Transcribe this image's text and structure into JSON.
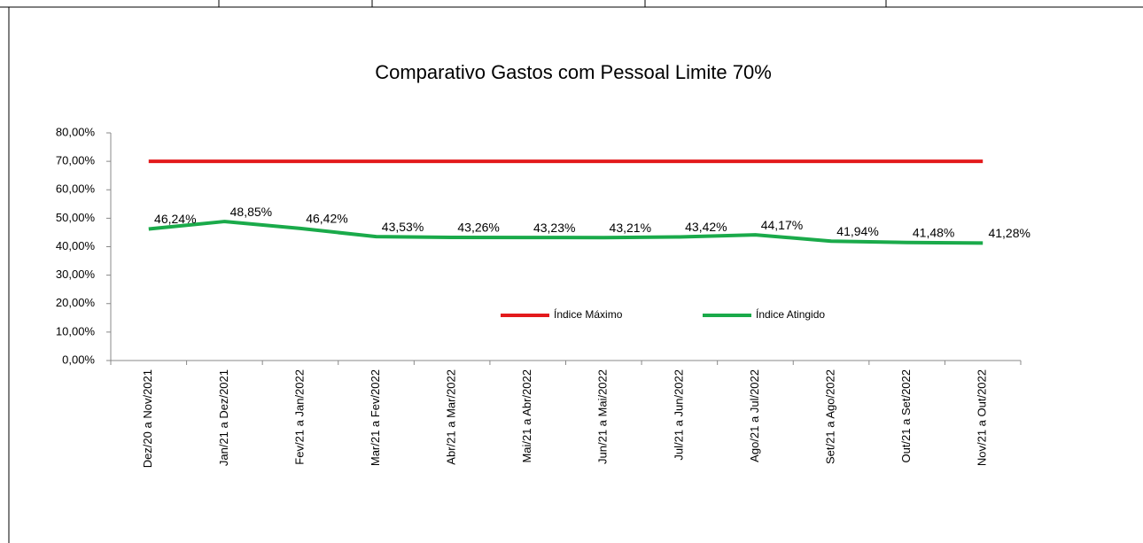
{
  "chart_data": {
    "type": "line",
    "title": "Comparativo Gastos com Pessoal Limite 70%",
    "categories": [
      "Dez/20 a Nov/2021",
      "Jan/21 a Dez/2021",
      "Fev/21 a Jan/2022",
      "Mar/21 a Fev/2022",
      "Abr/21 a Mar/2022",
      "Mai/21 a Abr/2022",
      "Jun/21 a Mai/2022",
      "Jul/21 a Jun/2022",
      "Ago/21 a Jul/2022",
      "Set/21 a Ago/2022",
      "Out/21 a Set/2022",
      "Nov/21 a Out/2022"
    ],
    "series": [
      {
        "name": "Índice Máximo",
        "color": "#e31a1c",
        "values": [
          70,
          70,
          70,
          70,
          70,
          70,
          70,
          70,
          70,
          70,
          70,
          70
        ]
      },
      {
        "name": "Índice Atingido",
        "color": "#1aaa4a",
        "values": [
          46.24,
          48.85,
          46.42,
          43.53,
          43.26,
          43.23,
          43.21,
          43.42,
          44.17,
          41.94,
          41.48,
          41.28
        ],
        "value_labels": [
          "46,24%",
          "48,85%",
          "46,42%",
          "43,53%",
          "43,26%",
          "43,23%",
          "43,21%",
          "43,42%",
          "44,17%",
          "41,94%",
          "41,48%",
          "41,28%"
        ]
      }
    ],
    "ylim": [
      0,
      80
    ],
    "yticks": [
      {
        "value": 0,
        "label": "0,00%"
      },
      {
        "value": 10,
        "label": "10,00%"
      },
      {
        "value": 20,
        "label": "20,00%"
      },
      {
        "value": 30,
        "label": "30,00%"
      },
      {
        "value": 40,
        "label": "40,00%"
      },
      {
        "value": 50,
        "label": "50,00%"
      },
      {
        "value": 60,
        "label": "60,00%"
      },
      {
        "value": 70,
        "label": "70,00%"
      },
      {
        "value": 80,
        "label": "80,00%"
      }
    ],
    "grid": false
  }
}
